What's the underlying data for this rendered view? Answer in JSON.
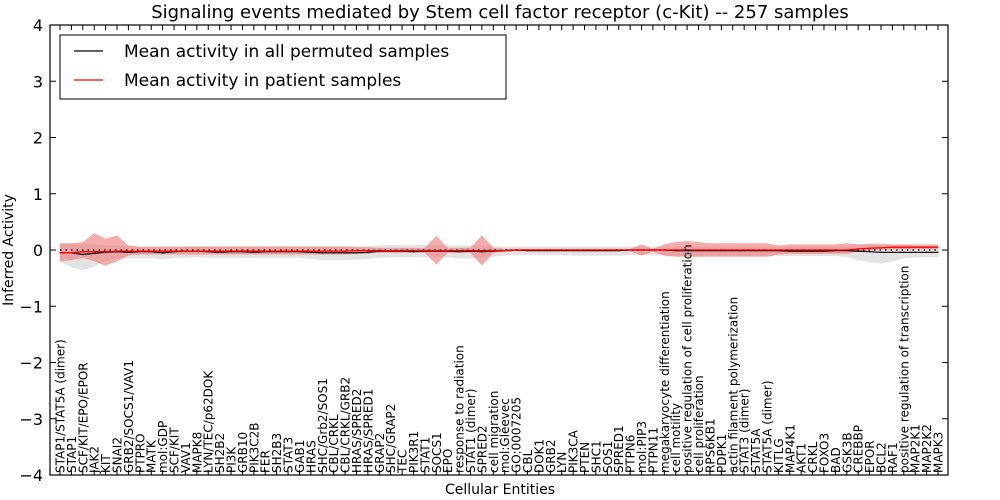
{
  "chart_data": {
    "type": "line",
    "title": "Signaling events mediated by Stem cell factor receptor (c-Kit) -- 257 samples",
    "xlabel": "Cellular Entities",
    "ylabel": "Inferred Activity",
    "ylim": [
      -4,
      4
    ],
    "yticks": [
      4,
      3,
      2,
      1,
      0,
      -1,
      -2,
      -3,
      -4
    ],
    "ytick_labels": [
      "4",
      "3",
      "2",
      "1",
      "0",
      "−1",
      "−2",
      "−3",
      "−4"
    ],
    "grid": false,
    "legend": {
      "placement": "top-left",
      "entries": [
        {
          "label": "Mean activity in all permuted samples",
          "color": "#000000"
        },
        {
          "label": "Mean activity in patient samples",
          "color": "#ff0000"
        }
      ]
    },
    "colors": {
      "permuted_line": "#000000",
      "patient_line": "#ff0000",
      "permuted_band": "#d9d9d9",
      "patient_band": "#f08080"
    },
    "categories": [
      "STAP1/STAT5A (dimer)",
      "STAP1",
      "SCF/KIT/EPO/EPOR",
      "JAK2",
      "KIT",
      "SNAI2",
      "GRB2/SOCS1/VAV1",
      "PTPRO",
      "MATK",
      "mol:GDP",
      "SCF/KIT",
      "VAV1",
      "MAPK8",
      "LYN/TEC/p62DOK",
      "SH2B2",
      "PI3K",
      "GRB10",
      "PIK3C2B",
      "FER",
      "SH2B3",
      "STAT3",
      "GAB1",
      "HRAS",
      "SHC/Grb2/SOS1",
      "CBL/CRKL",
      "CBL/CRKL/GRB2",
      "HRAS/SPRED2",
      "HRAS/SPRED1",
      "GRAP2",
      "SHC/GRAP2",
      "TEC",
      "PIK3R1",
      "STAT1",
      "SOCS1",
      "EPO",
      "response to radiation",
      "STAT1 (dimer)",
      "SPRED2",
      "cell migration",
      "mol:Gleevec",
      "GO:0007205",
      "CBL",
      "DOK1",
      "GRB2",
      "LYN",
      "PIK3CA",
      "PTEN",
      "SHC1",
      "SOS1",
      "SPRED1",
      "PTPN6",
      "mol:PIP3",
      "PTPN11",
      "megakaryocyte differentiation",
      "cell motility",
      "positive regulation of cell proliferation",
      "cell proliferation",
      "RPS6KB1",
      "PDPK1",
      "actin filament polymerization",
      "STAT3 (dimer)",
      "STAT5A",
      "STAT5A (dimer)",
      "KITLG",
      "MAP4K1",
      "AKT1",
      "CRKL",
      "FOXO3",
      "BAD",
      "GSK3B",
      "CREBBP",
      "EPOR",
      "BCL2",
      "RAF1",
      "positive regulation of transcription",
      "MAP2K1",
      "MAP2K2",
      "MAPK3"
    ],
    "series": [
      {
        "name": "Mean activity in all permuted samples",
        "values": [
          -0.05,
          -0.05,
          -0.08,
          -0.06,
          -0.04,
          -0.03,
          -0.04,
          -0.03,
          -0.03,
          -0.05,
          -0.03,
          -0.02,
          -0.02,
          -0.03,
          -0.04,
          -0.03,
          -0.03,
          -0.04,
          -0.03,
          -0.03,
          -0.03,
          -0.03,
          -0.04,
          -0.05,
          -0.05,
          -0.05,
          -0.05,
          -0.04,
          -0.02,
          -0.02,
          -0.02,
          -0.03,
          -0.02,
          -0.02,
          -0.02,
          -0.03,
          -0.02,
          -0.03,
          -0.02,
          -0.01,
          0.0,
          -0.01,
          -0.01,
          -0.01,
          -0.01,
          -0.01,
          -0.01,
          -0.01,
          -0.01,
          -0.01,
          0.0,
          0.0,
          0.0,
          0.0,
          -0.01,
          -0.01,
          -0.01,
          -0.01,
          -0.01,
          -0.01,
          -0.01,
          -0.01,
          -0.01,
          -0.01,
          -0.02,
          -0.02,
          -0.02,
          -0.02,
          -0.01,
          -0.01,
          -0.02,
          -0.03,
          -0.04,
          -0.04,
          -0.04,
          -0.04,
          -0.04,
          -0.04
        ],
        "lower": [
          -0.22,
          -0.3,
          -0.36,
          -0.3,
          -0.2,
          -0.15,
          -0.15,
          -0.15,
          -0.15,
          -0.16,
          -0.14,
          -0.14,
          -0.13,
          -0.14,
          -0.14,
          -0.14,
          -0.14,
          -0.14,
          -0.14,
          -0.14,
          -0.14,
          -0.14,
          -0.16,
          -0.18,
          -0.18,
          -0.18,
          -0.17,
          -0.16,
          -0.14,
          -0.13,
          -0.13,
          -0.13,
          -0.13,
          -0.13,
          -0.13,
          -0.15,
          -0.15,
          -0.15,
          -0.12,
          -0.1,
          -0.09,
          -0.09,
          -0.09,
          -0.09,
          -0.09,
          -0.1,
          -0.1,
          -0.1,
          -0.1,
          -0.1,
          -0.09,
          -0.09,
          -0.09,
          -0.1,
          -0.11,
          -0.11,
          -0.11,
          -0.11,
          -0.11,
          -0.11,
          -0.11,
          -0.11,
          -0.11,
          -0.11,
          -0.11,
          -0.11,
          -0.11,
          -0.11,
          -0.11,
          -0.12,
          -0.18,
          -0.22,
          -0.24,
          -0.2,
          -0.15,
          -0.13,
          -0.13,
          -0.13
        ],
        "upper": [
          0.12,
          0.1,
          0.12,
          0.1,
          0.08,
          0.08,
          0.07,
          0.06,
          0.06,
          0.06,
          0.06,
          0.07,
          0.07,
          0.07,
          0.07,
          0.07,
          0.07,
          0.07,
          0.07,
          0.07,
          0.07,
          0.07,
          0.07,
          0.07,
          0.07,
          0.07,
          0.07,
          0.07,
          0.08,
          0.09,
          0.09,
          0.09,
          0.09,
          0.08,
          0.08,
          0.08,
          0.08,
          0.08,
          0.07,
          0.06,
          0.06,
          0.06,
          0.06,
          0.06,
          0.06,
          0.06,
          0.06,
          0.06,
          0.06,
          0.06,
          0.06,
          0.06,
          0.06,
          0.06,
          0.06,
          0.06,
          0.06,
          0.06,
          0.06,
          0.06,
          0.06,
          0.06,
          0.06,
          0.06,
          0.06,
          0.06,
          0.06,
          0.06,
          0.06,
          0.06,
          0.1,
          0.12,
          0.12,
          0.1,
          0.08,
          0.07,
          0.07,
          0.07
        ]
      },
      {
        "name": "Mean activity in patient samples",
        "values": [
          -0.05,
          -0.05,
          -0.03,
          -0.03,
          -0.03,
          -0.02,
          -0.02,
          -0.02,
          -0.02,
          -0.02,
          -0.02,
          -0.02,
          -0.02,
          -0.02,
          -0.02,
          -0.02,
          -0.02,
          -0.02,
          -0.02,
          -0.02,
          -0.02,
          -0.02,
          -0.02,
          -0.02,
          -0.02,
          -0.02,
          -0.01,
          -0.01,
          -0.01,
          -0.01,
          -0.01,
          -0.01,
          -0.01,
          -0.01,
          -0.01,
          -0.01,
          -0.01,
          -0.01,
          -0.01,
          -0.01,
          0.0,
          0.0,
          0.0,
          0.0,
          0.0,
          0.0,
          0.0,
          0.0,
          0.0,
          0.0,
          0.0,
          0.0,
          0.0,
          0.0,
          0.0,
          0.0,
          0.0,
          0.0,
          0.0,
          0.0,
          0.0,
          0.0,
          0.0,
          0.0,
          0.0,
          0.0,
          0.0,
          0.0,
          0.0,
          0.0,
          0.02,
          0.03,
          0.04,
          0.05,
          0.05,
          0.05,
          0.05,
          0.05
        ],
        "lower": [
          -0.2,
          -0.18,
          -0.14,
          -0.2,
          -0.28,
          -0.2,
          -0.1,
          -0.08,
          -0.08,
          -0.08,
          -0.08,
          -0.08,
          -0.08,
          -0.08,
          -0.08,
          -0.08,
          -0.08,
          -0.08,
          -0.08,
          -0.08,
          -0.08,
          -0.08,
          -0.08,
          -0.08,
          -0.08,
          -0.08,
          -0.07,
          -0.07,
          -0.05,
          -0.05,
          -0.05,
          -0.05,
          -0.05,
          -0.26,
          -0.05,
          -0.05,
          -0.05,
          -0.28,
          -0.05,
          -0.03,
          -0.02,
          -0.02,
          -0.02,
          -0.02,
          -0.02,
          -0.02,
          -0.02,
          -0.02,
          -0.02,
          -0.02,
          -0.02,
          -0.1,
          -0.03,
          -0.1,
          -0.12,
          -0.12,
          -0.12,
          -0.12,
          -0.12,
          -0.12,
          -0.12,
          -0.12,
          -0.12,
          -0.08,
          -0.07,
          -0.07,
          -0.07,
          -0.07,
          -0.07,
          -0.07,
          -0.03,
          -0.01,
          0.01,
          0.01,
          0.01,
          0.01,
          0.01,
          0.01
        ],
        "upper": [
          0.12,
          0.12,
          0.14,
          0.3,
          0.2,
          0.26,
          0.08,
          0.06,
          0.06,
          0.06,
          0.06,
          0.06,
          0.06,
          0.06,
          0.06,
          0.06,
          0.06,
          0.06,
          0.06,
          0.06,
          0.06,
          0.06,
          0.06,
          0.06,
          0.06,
          0.06,
          0.05,
          0.05,
          0.04,
          0.04,
          0.04,
          0.04,
          0.04,
          0.25,
          0.04,
          0.04,
          0.04,
          0.26,
          0.04,
          0.02,
          0.02,
          0.02,
          0.02,
          0.02,
          0.02,
          0.02,
          0.02,
          0.02,
          0.02,
          0.02,
          0.02,
          0.1,
          0.02,
          0.1,
          0.14,
          0.16,
          0.14,
          0.12,
          0.12,
          0.12,
          0.12,
          0.12,
          0.12,
          0.08,
          0.1,
          0.1,
          0.1,
          0.1,
          0.1,
          0.12,
          0.1,
          0.1,
          0.1,
          0.1,
          0.1,
          0.1,
          0.1,
          0.1
        ]
      }
    ],
    "reference_line": {
      "y": 0,
      "style": "dotted"
    }
  }
}
